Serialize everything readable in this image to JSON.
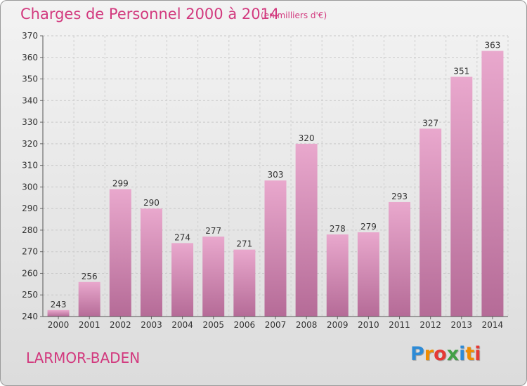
{
  "header": {
    "title": "Charges de Personnel 2000 à 2014",
    "unit_note": "(en milliers d'€)"
  },
  "commune": "LARMOR-BADEN",
  "logo": {
    "text": "Proxiti",
    "letters": [
      "P",
      "r",
      "o",
      "x",
      "i",
      "t",
      "i"
    ],
    "colors": [
      "#2e8bd6",
      "#f08c00",
      "#e53935",
      "#43a047",
      "#2e8bd6",
      "#f08c00",
      "#e53935"
    ]
  },
  "colors": {
    "bar_top": "#e9a8cd",
    "bar_bottom": "#b56b97",
    "title": "#d2397e"
  },
  "chart_data": {
    "type": "bar",
    "categories": [
      "2000",
      "2001",
      "2002",
      "2003",
      "2004",
      "2005",
      "2006",
      "2007",
      "2008",
      "2009",
      "2010",
      "2011",
      "2012",
      "2013",
      "2014"
    ],
    "values": [
      243,
      256,
      299,
      290,
      274,
      277,
      271,
      303,
      320,
      278,
      279,
      293,
      327,
      351,
      363
    ],
    "ylim": [
      240,
      370
    ],
    "yticks": [
      240,
      250,
      260,
      270,
      280,
      290,
      300,
      310,
      320,
      330,
      340,
      350,
      360,
      370
    ],
    "grid": true,
    "xlabel": "",
    "ylabel": ""
  }
}
